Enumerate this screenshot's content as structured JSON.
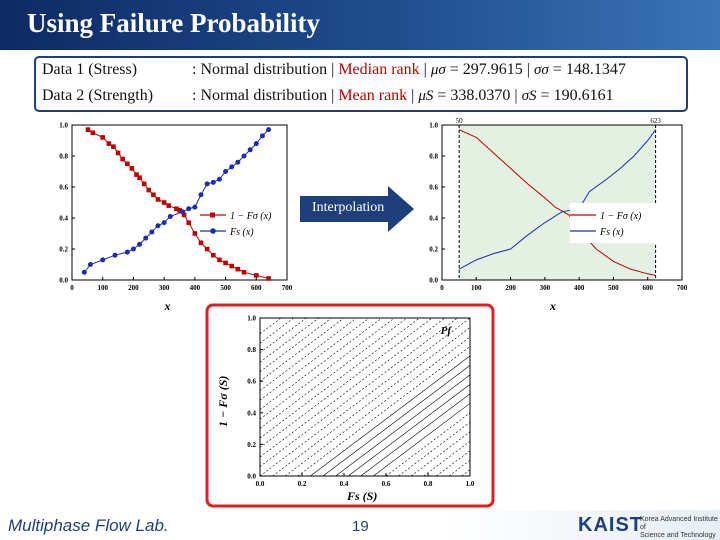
{
  "slide": {
    "title": "Using Failure Probability",
    "page_number": "19",
    "footer_lab": "Multiphase Flow Lab.",
    "footer_org_logo": "KAIST",
    "footer_org_name_line1": "Korea Advanced Institute of",
    "footer_org_name_line2": "Science and Technology"
  },
  "info": {
    "row1_label": "Data 1 (Stress)",
    "row1_prefix": ": Normal distribution | ",
    "row1_method": "Median rank",
    "row1_sep": " | ",
    "row1_mu_sym": "μσ",
    "row1_mu_val": " = 297.9615 | ",
    "row1_sd_sym": "σσ",
    "row1_sd_val": " = 148.1347",
    "row2_label": "Data 2 (Strength)",
    "row2_prefix": ": Normal distribution | ",
    "row2_method": "Mean rank",
    "row2_sep": "   | ",
    "row2_mu_sym": "μS",
    "row2_mu_val": " = 338.0370 | ",
    "row2_sd_sym": "σS",
    "row2_sd_val": " =  190.6161"
  },
  "arrow_label": "Interpolation",
  "colors": {
    "title_bg": "#1f4e8f",
    "stress": "#c00000",
    "strength": "#1a2fb0",
    "shade": "#e3f1e3",
    "highlight_border": "#e02020"
  },
  "chart_data": [
    {
      "type": "scatter",
      "xlabel": "x",
      "xticks": [
        "0",
        "100",
        "200",
        "300",
        "400",
        "500",
        "600",
        "700"
      ],
      "yticks": [
        "0.0",
        "0.2",
        "0.4",
        "0.6",
        "0.8",
        "1.0"
      ],
      "xlim": [
        0,
        700
      ],
      "ylim": [
        0,
        1
      ],
      "series": [
        {
          "name": "1 − Fσ (x)",
          "x": [
            52,
            68,
            100,
            120,
            135,
            150,
            165,
            180,
            195,
            210,
            220,
            235,
            250,
            265,
            280,
            300,
            315,
            340,
            350,
            365,
            380,
            400,
            420,
            440,
            460,
            480,
            500,
            520,
            540,
            560,
            600,
            640
          ],
          "y": [
            0.97,
            0.95,
            0.92,
            0.88,
            0.86,
            0.82,
            0.78,
            0.75,
            0.72,
            0.68,
            0.66,
            0.62,
            0.58,
            0.55,
            0.52,
            0.5,
            0.48,
            0.46,
            0.45,
            0.42,
            0.37,
            0.3,
            0.24,
            0.2,
            0.16,
            0.13,
            0.11,
            0.09,
            0.07,
            0.05,
            0.03,
            0.01
          ]
        },
        {
          "name": "Fs (x)",
          "x": [
            40,
            60,
            100,
            140,
            180,
            200,
            220,
            240,
            260,
            280,
            300,
            320,
            360,
            380,
            400,
            420,
            440,
            460,
            480,
            500,
            520,
            540,
            560,
            580,
            600,
            620,
            640
          ],
          "y": [
            0.05,
            0.1,
            0.13,
            0.16,
            0.18,
            0.2,
            0.23,
            0.27,
            0.31,
            0.35,
            0.37,
            0.41,
            0.44,
            0.46,
            0.47,
            0.55,
            0.62,
            0.63,
            0.65,
            0.7,
            0.73,
            0.76,
            0.8,
            0.84,
            0.88,
            0.93,
            0.97
          ]
        }
      ]
    },
    {
      "type": "line",
      "xlabel": "x",
      "xticks": [
        "0",
        "100",
        "200",
        "300",
        "400",
        "500",
        "600",
        "700"
      ],
      "yticks": [
        "0.0",
        "0.2",
        "0.4",
        "0.6",
        "0.8",
        "1.0"
      ],
      "xlim": [
        0,
        700
      ],
      "ylim": [
        0,
        1
      ],
      "shaded_range": [
        50,
        623
      ],
      "shaded_labels": [
        "50",
        "623"
      ],
      "series": [
        {
          "name": "1 − Fσ (x)",
          "x": [
            50,
            100,
            150,
            200,
            250,
            300,
            330,
            370,
            400,
            450,
            500,
            550,
            600,
            623
          ],
          "y": [
            0.97,
            0.92,
            0.82,
            0.72,
            0.62,
            0.53,
            0.47,
            0.42,
            0.32,
            0.2,
            0.12,
            0.07,
            0.04,
            0.03
          ]
        },
        {
          "name": "Fs (x)",
          "x": [
            50,
            100,
            150,
            200,
            250,
            300,
            350,
            400,
            430,
            480,
            520,
            560,
            600,
            623
          ],
          "y": [
            0.07,
            0.13,
            0.17,
            0.2,
            0.29,
            0.37,
            0.44,
            0.46,
            0.57,
            0.65,
            0.72,
            0.8,
            0.9,
            0.97
          ]
        }
      ]
    },
    {
      "type": "line",
      "xlabel": "Fs (S)",
      "ylabel": "1 − Fσ (S)",
      "xticks": [
        "0.0",
        "0.2",
        "0.4",
        "0.6",
        "0.8",
        "1.0"
      ],
      "yticks": [
        "0.0",
        "0.2",
        "0.4",
        "0.6",
        "0.8",
        "1.0"
      ],
      "xlim": [
        0,
        1
      ],
      "ylim": [
        0,
        1
      ],
      "annotation": "Pf"
    }
  ]
}
